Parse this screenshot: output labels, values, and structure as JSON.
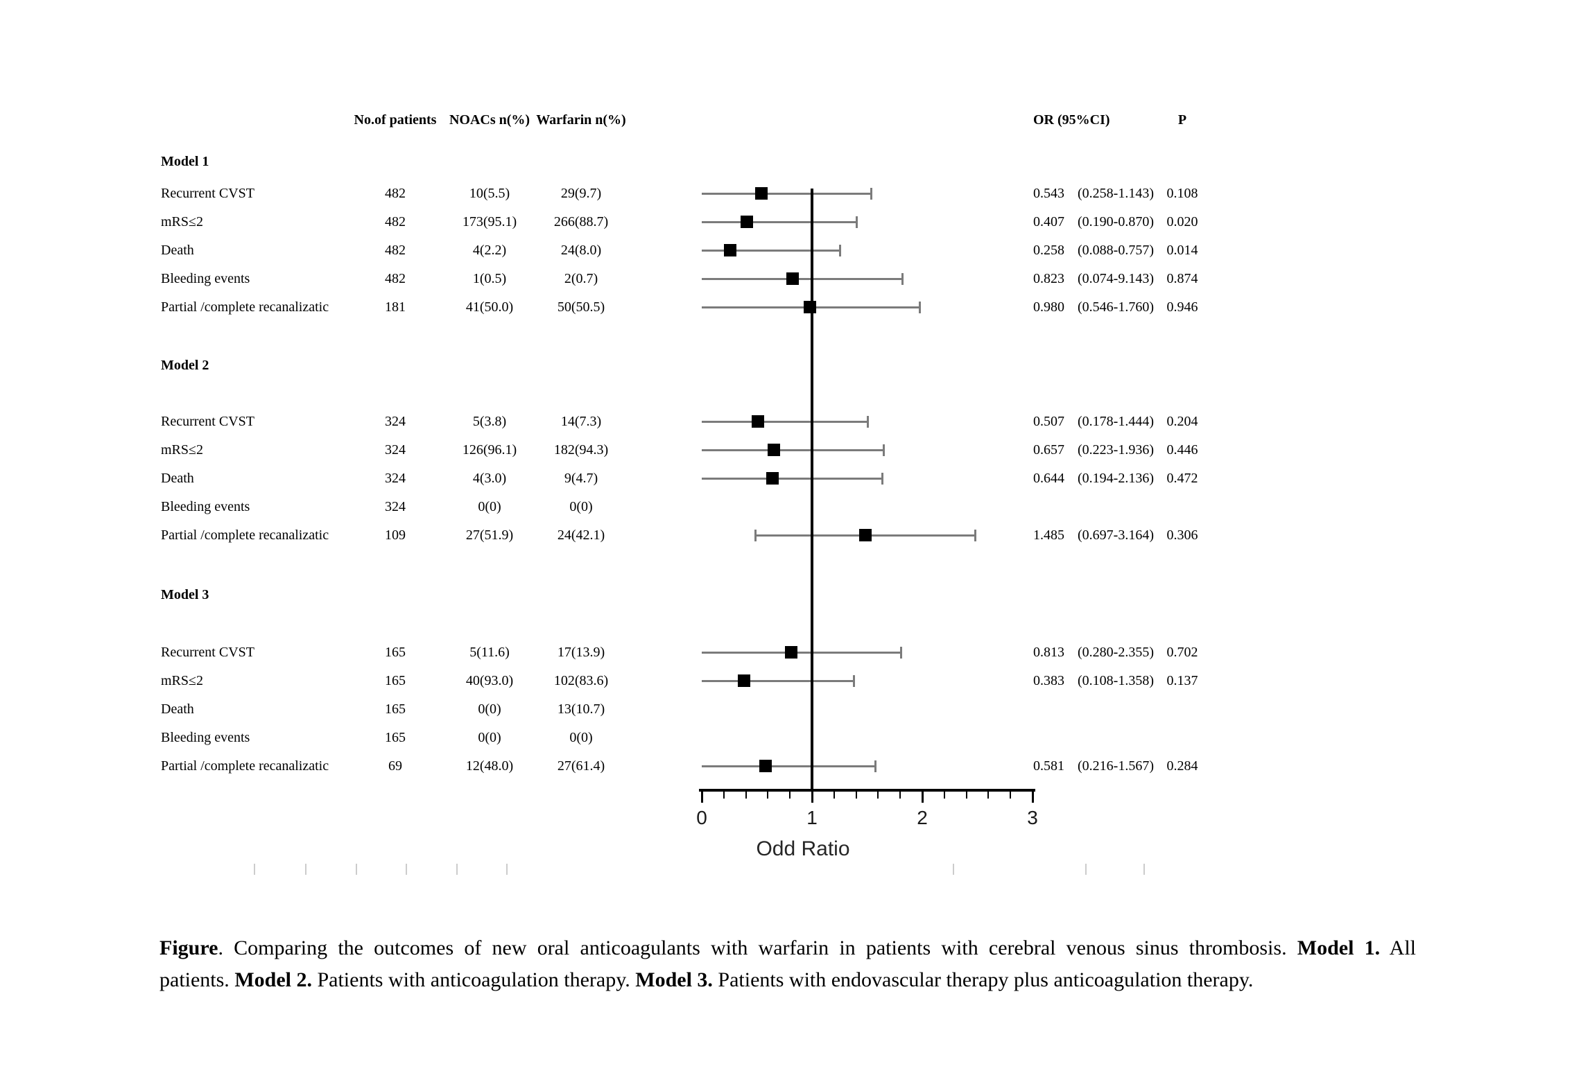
{
  "header": {
    "patients": "No.of patients",
    "noacs": "NOACs n(%)",
    "warfarin": "Warfarin n(%)",
    "or": "OR (95%CI)",
    "p": "P"
  },
  "axis": {
    "xlabel": "Odd Ratio",
    "tick_labels": [
      "0",
      "1",
      "2",
      "3"
    ]
  },
  "chart_data": {
    "type": "scatter",
    "subtype": "forest_plot",
    "xlabel": "Odd Ratio",
    "xlim": [
      0,
      3
    ],
    "x_ticks": [
      0,
      1,
      2,
      3
    ],
    "x_minor_tick_step": 0.2,
    "reference_line_x": 1,
    "note": "Black squares mark the odds ratio; whiskers as drawn in the source figure span OR±1.0 clipped at 0, with end caps only on unclipped ends.",
    "sections": [
      {
        "label": "Model 1",
        "rows": [
          {
            "outcome": "Recurrent CVST",
            "n": "482",
            "noacs": "10(5.5)",
            "warfarin": "29(9.7)",
            "or": 0.543,
            "ci": [
              0.258,
              1.143
            ],
            "or_text": "0.543",
            "ci_text": "(0.258-1.143)",
            "p": "0.108",
            "plot": {
              "or": 0.543,
              "lo": 0,
              "hi": 1.543,
              "lo_cap": false,
              "hi_cap": true
            }
          },
          {
            "outcome": "mRS≤2",
            "n": "482",
            "noacs": "173(95.1)",
            "warfarin": "266(88.7)",
            "or": 0.407,
            "ci": [
              0.19,
              0.87
            ],
            "or_text": "0.407",
            "ci_text": "(0.190-0.870)",
            "p": "0.020",
            "plot": {
              "or": 0.407,
              "lo": 0,
              "hi": 1.407,
              "lo_cap": false,
              "hi_cap": true
            }
          },
          {
            "outcome": "Death",
            "n": "482",
            "noacs": "4(2.2)",
            "warfarin": "24(8.0)",
            "or": 0.258,
            "ci": [
              0.088,
              0.757
            ],
            "or_text": "0.258",
            "ci_text": "(0.088-0.757)",
            "p": "0.014",
            "plot": {
              "or": 0.258,
              "lo": 0,
              "hi": 1.258,
              "lo_cap": false,
              "hi_cap": true
            }
          },
          {
            "outcome": "Bleeding events",
            "n": "482",
            "noacs": "1(0.5)",
            "warfarin": "2(0.7)",
            "or": 0.823,
            "ci": [
              0.074,
              9.143
            ],
            "or_text": "0.823",
            "ci_text": "(0.074-9.143)",
            "p": "0.874",
            "plot": {
              "or": 0.823,
              "lo": 0,
              "hi": 1.823,
              "lo_cap": false,
              "hi_cap": true
            }
          },
          {
            "outcome": "Partial /complete recanalizatic",
            "n": "181",
            "noacs": "41(50.0)",
            "warfarin": "50(50.5)",
            "or": 0.98,
            "ci": [
              0.546,
              1.76
            ],
            "or_text": "0.980",
            "ci_text": "(0.546-1.760)",
            "p": "0.946",
            "plot": {
              "or": 0.98,
              "lo": 0,
              "hi": 1.98,
              "lo_cap": false,
              "hi_cap": true
            }
          }
        ]
      },
      {
        "label": "Model 2",
        "rows": [
          {
            "outcome": "Recurrent CVST",
            "n": "324",
            "noacs": "5(3.8)",
            "warfarin": "14(7.3)",
            "or": 0.507,
            "ci": [
              0.178,
              1.444
            ],
            "or_text": "0.507",
            "ci_text": "(0.178-1.444)",
            "p": "0.204",
            "plot": {
              "or": 0.507,
              "lo": 0,
              "hi": 1.507,
              "lo_cap": false,
              "hi_cap": true
            }
          },
          {
            "outcome": "mRS≤2",
            "n": "324",
            "noacs": "126(96.1)",
            "warfarin": "182(94.3)",
            "or": 0.657,
            "ci": [
              0.223,
              1.936
            ],
            "or_text": "0.657",
            "ci_text": "(0.223-1.936)",
            "p": "0.446",
            "plot": {
              "or": 0.657,
              "lo": 0,
              "hi": 1.657,
              "lo_cap": false,
              "hi_cap": true
            }
          },
          {
            "outcome": "Death",
            "n": "324",
            "noacs": "4(3.0)",
            "warfarin": "9(4.7)",
            "or": 0.644,
            "ci": [
              0.194,
              2.136
            ],
            "or_text": "0.644",
            "ci_text": "(0.194-2.136)",
            "p": "0.472",
            "plot": {
              "or": 0.644,
              "lo": 0,
              "hi": 1.644,
              "lo_cap": false,
              "hi_cap": true
            }
          },
          {
            "outcome": "Bleeding events",
            "n": "324",
            "noacs": "0(0)",
            "warfarin": "0(0)",
            "or": null,
            "ci": null,
            "or_text": "",
            "ci_text": "",
            "p": "",
            "plot": null
          },
          {
            "outcome": "Partial /complete recanalizatic",
            "n": "109",
            "noacs": "27(51.9)",
            "warfarin": "24(42.1)",
            "or": 1.485,
            "ci": [
              0.697,
              3.164
            ],
            "or_text": "1.485",
            "ci_text": "(0.697-3.164)",
            "p": "0.306",
            "plot": {
              "or": 1.485,
              "lo": 0.485,
              "hi": 2.485,
              "lo_cap": true,
              "hi_cap": true
            }
          }
        ]
      },
      {
        "label": "Model 3",
        "rows": [
          {
            "outcome": "Recurrent CVST",
            "n": "165",
            "noacs": "5(11.6)",
            "warfarin": "17(13.9)",
            "or": 0.813,
            "ci": [
              0.28,
              2.355
            ],
            "or_text": "0.813",
            "ci_text": "(0.280-2.355)",
            "p": "0.702",
            "plot": {
              "or": 0.813,
              "lo": 0,
              "hi": 1.813,
              "lo_cap": false,
              "hi_cap": true
            }
          },
          {
            "outcome": "mRS≤2",
            "n": "165",
            "noacs": "40(93.0)",
            "warfarin": "102(83.6)",
            "or": 0.383,
            "ci": [
              0.108,
              1.358
            ],
            "or_text": "0.383",
            "ci_text": "(0.108-1.358)",
            "p": "0.137",
            "plot": {
              "or": 0.383,
              "lo": 0,
              "hi": 1.383,
              "lo_cap": false,
              "hi_cap": true
            }
          },
          {
            "outcome": "Death",
            "n": "165",
            "noacs": "0(0)",
            "warfarin": "13(10.7)",
            "or": null,
            "ci": null,
            "or_text": "",
            "ci_text": "",
            "p": "",
            "plot": null
          },
          {
            "outcome": "Bleeding events",
            "n": "165",
            "noacs": "0(0)",
            "warfarin": "0(0)",
            "or": null,
            "ci": null,
            "or_text": "",
            "ci_text": "",
            "p": "",
            "plot": null
          },
          {
            "outcome": "Partial /complete recanalizatic",
            "n": "69",
            "noacs": "12(48.0)",
            "warfarin": "27(61.4)",
            "or": 0.581,
            "ci": [
              0.216,
              1.567
            ],
            "or_text": "0.581",
            "ci_text": "(0.216-1.567)",
            "p": "0.284",
            "plot": {
              "or": 0.581,
              "lo": 0,
              "hi": 1.581,
              "lo_cap": false,
              "hi_cap": true
            }
          }
        ]
      }
    ]
  },
  "caption": {
    "lines": [
      [
        {
          "t": "Figure",
          "b": true
        },
        {
          "t": ". Comparing the outcomes of new oral anticoagulants with warfarin in patients with cerebral venous sinus thrombosis. ",
          "b": false
        },
        {
          "t": "Model 1.",
          "b": true
        },
        {
          "t": " All",
          "b": false
        }
      ],
      [
        {
          "t": "patients. ",
          "b": false
        },
        {
          "t": "Model 2.",
          "b": true
        },
        {
          "t": " Patients with anticoagulation therapy. ",
          "b": false
        },
        {
          "t": "Model 3.",
          "b": true
        },
        {
          "t": " Patients with endovascular therapy plus anticoagulation therapy.",
          "b": false
        }
      ]
    ]
  }
}
